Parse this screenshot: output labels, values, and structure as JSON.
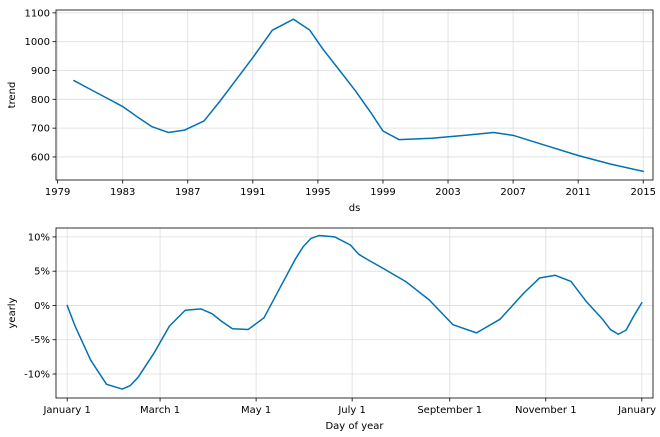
{
  "colors": {
    "line": "#0072B2",
    "grid": "#dddddd",
    "axis": "#000000"
  },
  "chart_data": [
    {
      "type": "line",
      "title": "",
      "xlabel": "ds",
      "ylabel": "trend",
      "grid": true,
      "xlim": [
        1978.9,
        2015.6
      ],
      "ylim": [
        520,
        1110
      ],
      "xticks": [
        1979,
        1983,
        1987,
        1991,
        1995,
        1999,
        2003,
        2007,
        2011,
        2015
      ],
      "xtick_labels": [
        "1979",
        "1983",
        "1987",
        "1991",
        "1995",
        "1999",
        "2003",
        "2007",
        "2011",
        "2015"
      ],
      "yticks": [
        600,
        700,
        800,
        900,
        1000,
        1100
      ],
      "ytick_labels": [
        "600",
        "700",
        "800",
        "900",
        "1000",
        "1100"
      ],
      "series": [
        {
          "x": [
            1980.0,
            1981.0,
            1982.0,
            1983.0,
            1984.0,
            1984.8,
            1985.8,
            1986.8,
            1988.0,
            1989.0,
            1990.0,
            1991.0,
            1992.2,
            1993.5,
            1994.5,
            1995.3,
            1996.2,
            1997.3,
            1998.3,
            1999.0,
            2000.0,
            2002.0,
            2004.0,
            2005.8,
            2007.0,
            2009.0,
            2011.0,
            2013.0,
            2015.0
          ],
          "y": [
            865,
            835,
            805,
            775,
            735,
            705,
            685,
            693,
            725,
            795,
            870,
            945,
            1040,
            1078,
            1040,
            975,
            910,
            830,
            750,
            690,
            660,
            665,
            675,
            685,
            675,
            640,
            605,
            575,
            550
          ]
        }
      ]
    },
    {
      "type": "line",
      "title": "",
      "xlabel": "Day of year",
      "ylabel": "yearly",
      "grid": true,
      "xlim": [
        -7.1,
        372.1
      ],
      "ylim": [
        -13.5,
        11.3
      ],
      "xticks": [
        0,
        59,
        120,
        181,
        243,
        304,
        365
      ],
      "xtick_labels": [
        "January 1",
        "March 1",
        "May 1",
        "July 1",
        "September 1",
        "November 1",
        "January 1"
      ],
      "yticks": [
        -10,
        -5,
        0,
        5,
        10
      ],
      "ytick_labels": [
        "-10%",
        "-5%",
        "0%",
        "5%",
        "10%"
      ],
      "series": [
        {
          "x": [
            0,
            5,
            15,
            25,
            35,
            40,
            45,
            55,
            65,
            75,
            85,
            92,
            98,
            105,
            115,
            125,
            135,
            145,
            150,
            155,
            160,
            170,
            180,
            185,
            190,
            200,
            215,
            230,
            245,
            260,
            275,
            290,
            300,
            310,
            320,
            330,
            340,
            345,
            350,
            355,
            360,
            365
          ],
          "y": [
            0,
            -3,
            -8,
            -11.5,
            -12.2,
            -11.7,
            -10.5,
            -7,
            -3,
            -0.7,
            -0.5,
            -1.2,
            -2.3,
            -3.4,
            -3.5,
            -1.8,
            2.5,
            6.8,
            8.6,
            9.8,
            10.2,
            10,
            8.8,
            7.5,
            6.8,
            5.5,
            3.5,
            0.8,
            -2.8,
            -4,
            -2,
            1.8,
            4,
            4.4,
            3.5,
            0.5,
            -2,
            -3.5,
            -4.2,
            -3.6,
            -1.5,
            0.4
          ]
        }
      ]
    }
  ]
}
